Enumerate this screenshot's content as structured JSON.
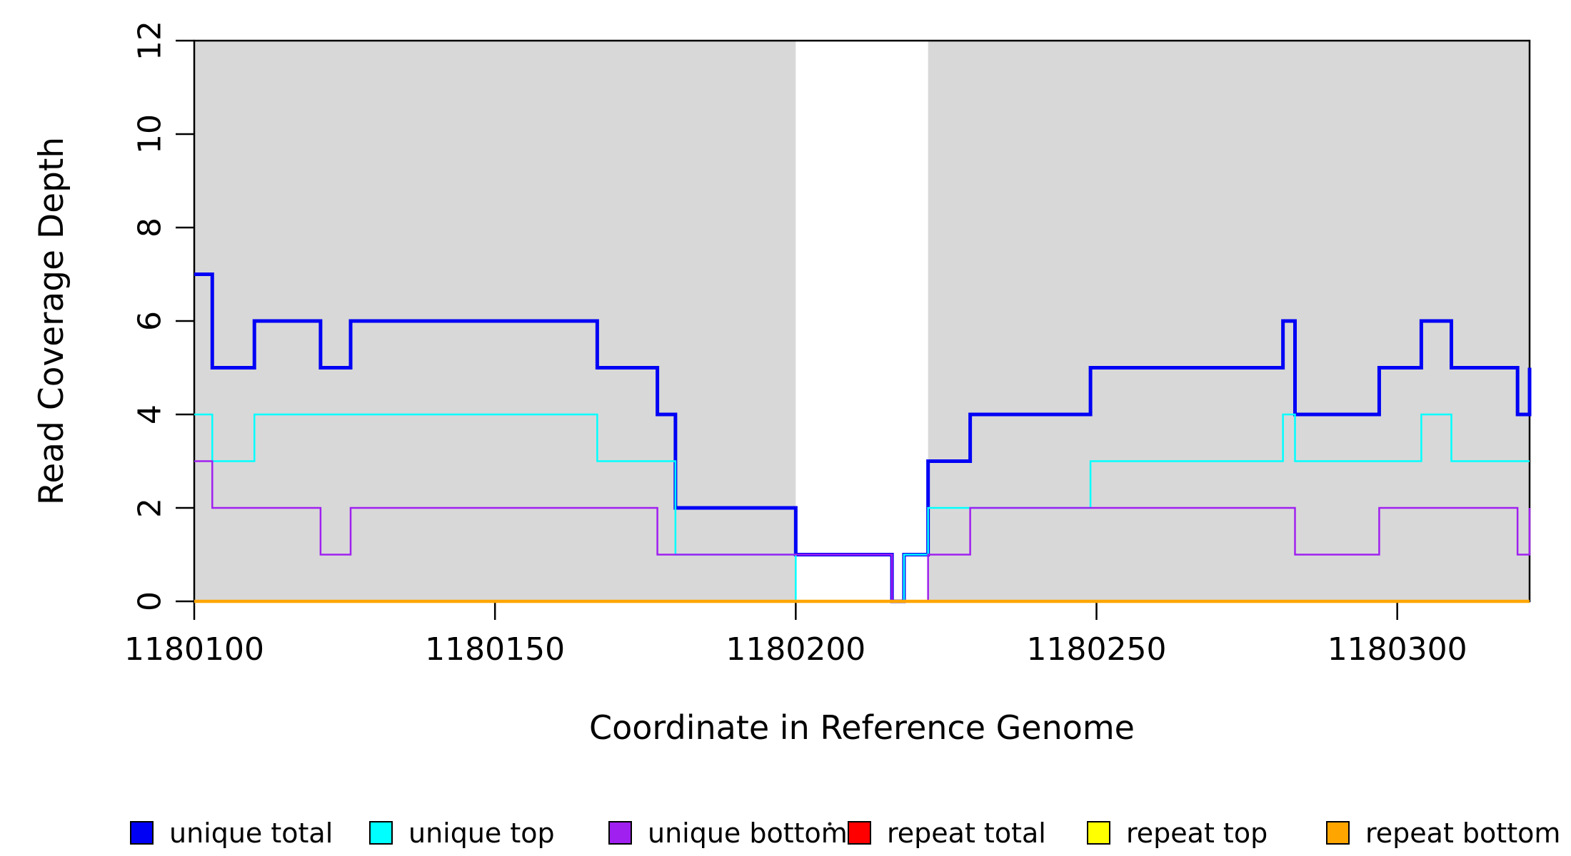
{
  "figure": {
    "kind": "read-coverage-depth-plot",
    "background": "#ffffff",
    "shaded_region_color": "#d8d8d8",
    "box_color": "#000000"
  },
  "chart_data": {
    "type": "line",
    "step": "after",
    "title": "",
    "xlabel": "Coordinate in Reference Genome",
    "ylabel": "Read Coverage Depth",
    "xlim": [
      1180100,
      1180322
    ],
    "ylim": [
      0,
      12
    ],
    "grid": false,
    "x_ticks": [
      "1180100",
      "1180150",
      "1180200",
      "1180250",
      "1180300"
    ],
    "x_tick_values": [
      1180100,
      1180150,
      1180200,
      1180250,
      1180300
    ],
    "y_ticks": [
      "0",
      "2",
      "4",
      "6",
      "8",
      "10",
      "12"
    ],
    "y_tick_values": [
      0,
      2,
      4,
      6,
      8,
      10,
      12
    ],
    "shaded_regions": [
      {
        "x0": 1180100,
        "x1": 1180200,
        "color": "#d8d8d8"
      },
      {
        "x0": 1180222,
        "x1": 1180322,
        "color": "#d8d8d8"
      }
    ],
    "series": [
      {
        "name": "unique total",
        "color": "#0000f5",
        "width": 5,
        "points": [
          [
            1180100,
            7
          ],
          [
            1180103,
            5
          ],
          [
            1180110,
            6
          ],
          [
            1180121,
            5
          ],
          [
            1180126,
            6
          ],
          [
            1180167,
            5
          ],
          [
            1180177,
            4
          ],
          [
            1180180,
            2
          ],
          [
            1180200,
            1
          ],
          [
            1180216,
            0
          ],
          [
            1180218,
            1
          ],
          [
            1180222,
            3
          ],
          [
            1180229,
            4
          ],
          [
            1180249,
            5
          ],
          [
            1180281,
            6
          ],
          [
            1180283,
            4
          ],
          [
            1180297,
            5
          ],
          [
            1180304,
            6
          ],
          [
            1180309,
            5
          ],
          [
            1180320,
            4
          ],
          [
            1180322,
            5
          ]
        ]
      },
      {
        "name": "unique top",
        "color": "#00ffff",
        "width": 2.5,
        "points": [
          [
            1180100,
            4
          ],
          [
            1180103,
            3
          ],
          [
            1180110,
            4
          ],
          [
            1180167,
            3
          ],
          [
            1180180,
            1
          ],
          [
            1180200,
            0
          ],
          [
            1180218,
            1
          ],
          [
            1180222,
            2
          ],
          [
            1180249,
            3
          ],
          [
            1180281,
            4
          ],
          [
            1180283,
            3
          ],
          [
            1180304,
            4
          ],
          [
            1180309,
            3
          ]
        ]
      },
      {
        "name": "unique bottom",
        "color": "#a020f0",
        "width": 2.5,
        "points": [
          [
            1180100,
            3
          ],
          [
            1180103,
            2
          ],
          [
            1180121,
            1
          ],
          [
            1180126,
            2
          ],
          [
            1180177,
            1
          ],
          [
            1180216,
            0
          ],
          [
            1180222,
            1
          ],
          [
            1180229,
            2
          ],
          [
            1180283,
            1
          ],
          [
            1180297,
            2
          ],
          [
            1180320,
            1
          ],
          [
            1180322,
            2
          ]
        ]
      },
      {
        "name": "repeat total",
        "color": "#ff0000",
        "width": 2.5,
        "points": [
          [
            1180100,
            0
          ]
        ]
      },
      {
        "name": "repeat top",
        "color": "#ffff00",
        "width": 2.5,
        "points": [
          [
            1180100,
            0
          ]
        ]
      },
      {
        "name": "repeat bottom",
        "color": "#ffa500",
        "width": 4.5,
        "points": [
          [
            1180100,
            0
          ]
        ]
      }
    ],
    "legend": {
      "position": "bottom",
      "items": [
        {
          "label": "unique total",
          "color": "#0000f5"
        },
        {
          "label": "unique top",
          "color": "#00ffff"
        },
        {
          "label": "unique bottom",
          "color": "#a020f0"
        },
        {
          "label": "repeat total",
          "color": "#ff0000"
        },
        {
          "label": "repeat top",
          "color": "#ffff00"
        },
        {
          "label": "repeat bottom",
          "color": "#ffa500"
        }
      ]
    }
  }
}
